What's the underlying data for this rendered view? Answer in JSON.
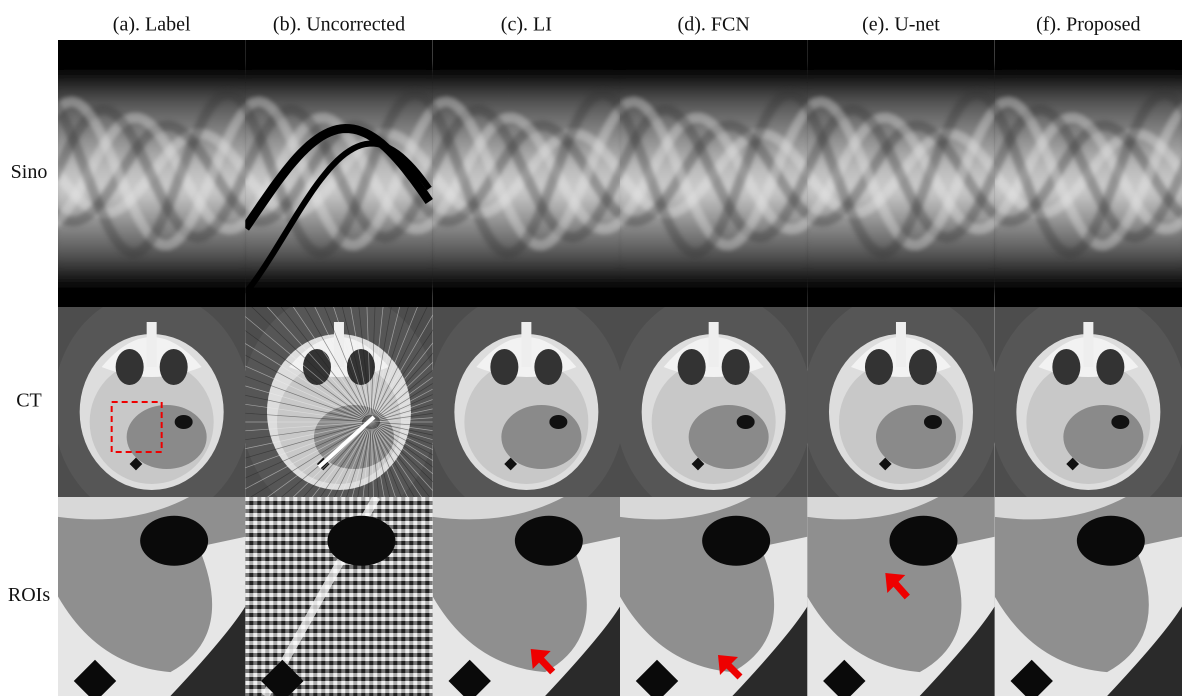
{
  "columns": [
    "(a). Label",
    "(b). Uncorrected",
    "(c). LI",
    "(d). FCN",
    "(e). U-net",
    "(f). Proposed"
  ],
  "rows": [
    "Sino",
    "CT",
    "ROIs"
  ]
}
